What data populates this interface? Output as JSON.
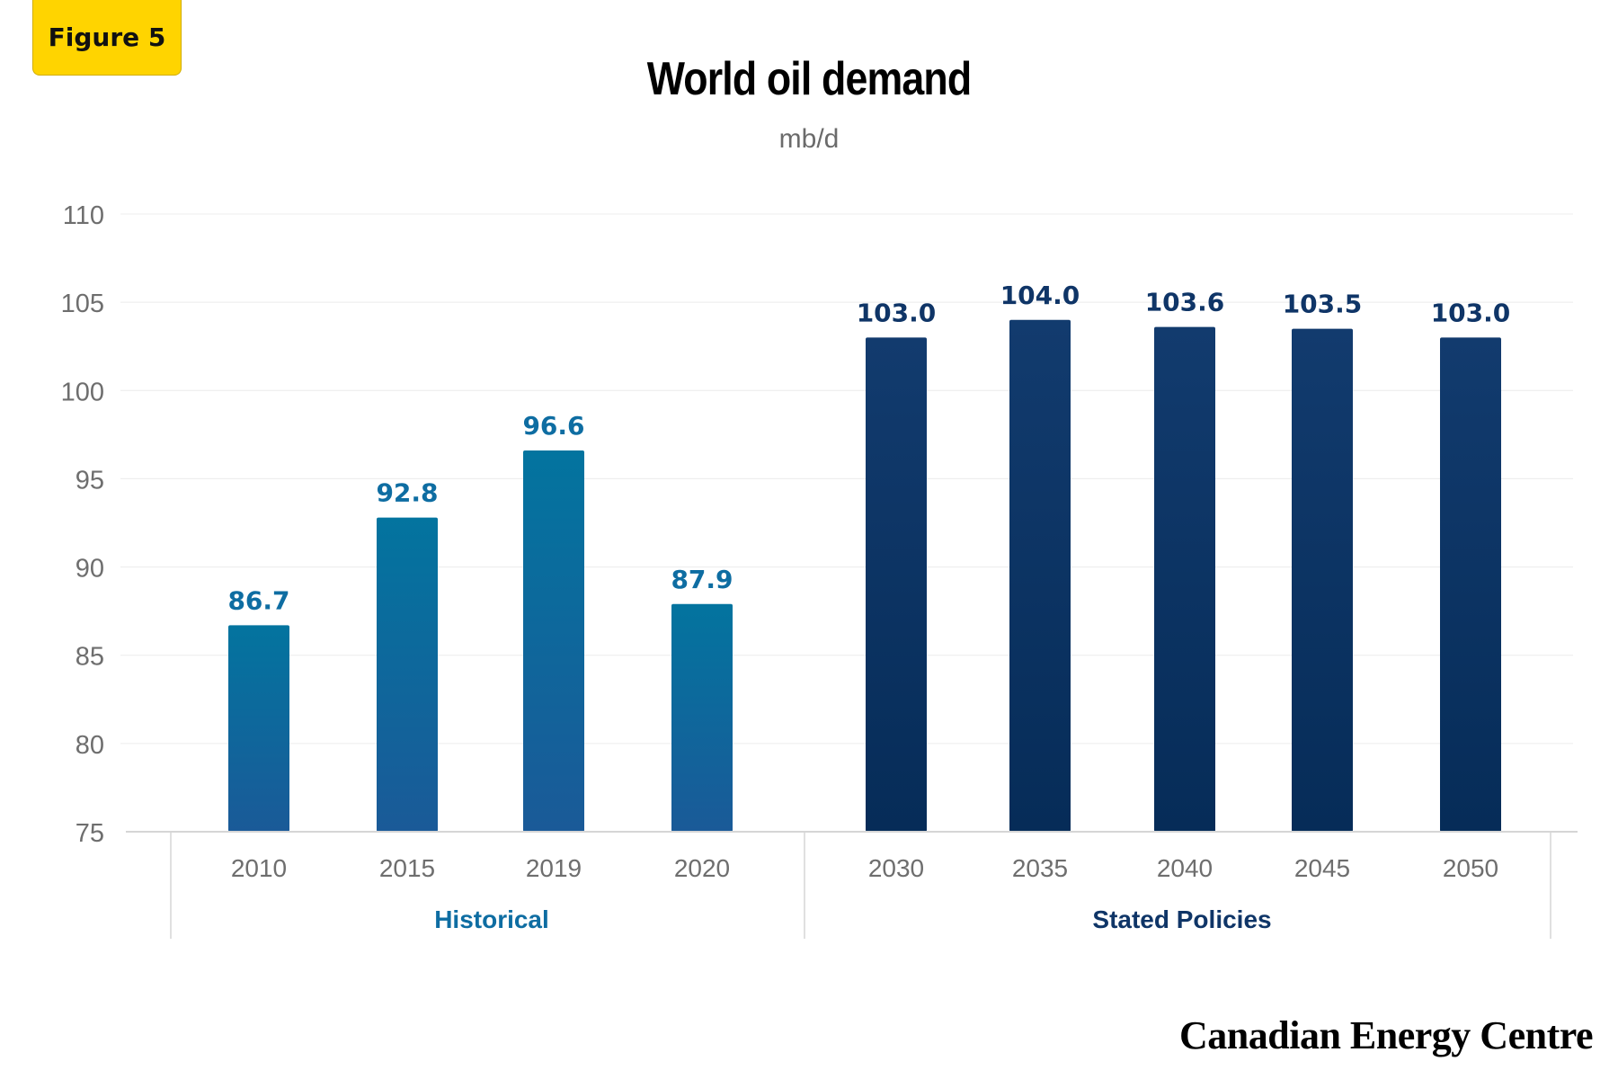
{
  "figure_label": "Figure 5",
  "brand": "Canadian Energy Centre",
  "colors": {
    "historical_top": "#03749f",
    "historical_bottom": "#1a5a98",
    "policies_top": "#123b6e",
    "policies_bottom": "#062c58",
    "historical_label": "#0e6da2",
    "policies_label": "#0f3567",
    "axis_text": "#6e6e6e",
    "grid": "#ececec"
  },
  "chart_data": {
    "type": "bar",
    "title": "World oil demand",
    "subtitle": "mb/d",
    "ylim": [
      75,
      110
    ],
    "yticks": [
      "75",
      "80",
      "85",
      "90",
      "95",
      "100",
      "105",
      "110"
    ],
    "grid": true,
    "groups": [
      {
        "name": "Historical",
        "categories": [
          "2010",
          "2015",
          "2019",
          "2020"
        ],
        "values": [
          86.7,
          92.8,
          96.6,
          87.9
        ],
        "labels": [
          "86.7",
          "92.8",
          "96.6",
          "87.9"
        ]
      },
      {
        "name": "Stated Policies",
        "categories": [
          "2030",
          "2035",
          "2040",
          "2045",
          "2050"
        ],
        "values": [
          103.0,
          104.0,
          103.6,
          103.5,
          103.0
        ],
        "labels": [
          "103.0",
          "104.0",
          "103.6",
          "103.5",
          "103.0"
        ]
      }
    ]
  }
}
